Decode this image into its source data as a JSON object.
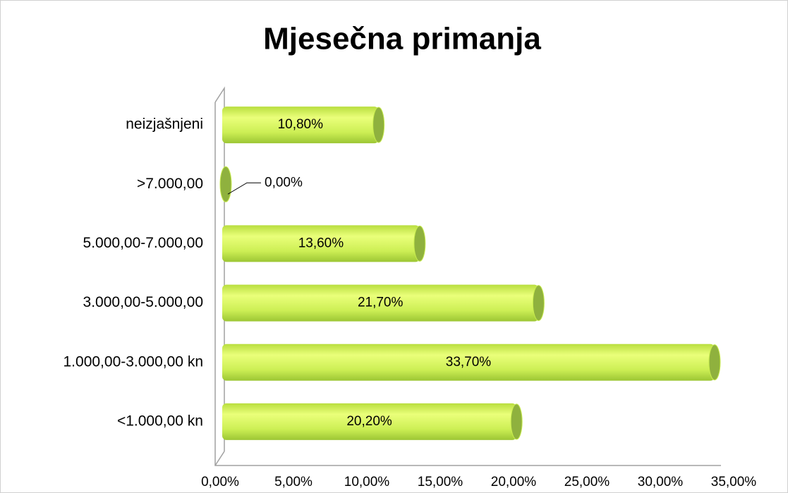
{
  "chart_data": {
    "type": "bar",
    "orientation": "horizontal",
    "title": "Mjesečna primanja",
    "categories": [
      "<1.000,00 kn",
      "1.000,00-3.000,00 kn",
      "3.000,00-5.000,00",
      "5.000,00-7.000,00",
      ">7.000,00",
      "neizjašnjeni"
    ],
    "values": [
      20.2,
      33.7,
      21.7,
      13.6,
      0,
      10.8
    ],
    "value_labels": [
      "20,20%",
      "33,70%",
      "21,70%",
      "13,60%",
      "0,00%",
      "10,80%"
    ],
    "color": "#c8ec4e",
    "xlim": [
      0,
      35
    ],
    "xticks": [
      {
        "value": 0,
        "label": "0,00%"
      },
      {
        "value": 5,
        "label": "5,00%"
      },
      {
        "value": 10,
        "label": "10,00%"
      },
      {
        "value": 15,
        "label": "15,00%"
      },
      {
        "value": 20,
        "label": "20,00%"
      },
      {
        "value": 25,
        "label": "25,00%"
      },
      {
        "value": 30,
        "label": "30,00%"
      },
      {
        "value": 35,
        "label": "35,00%"
      }
    ],
    "grid": false
  }
}
